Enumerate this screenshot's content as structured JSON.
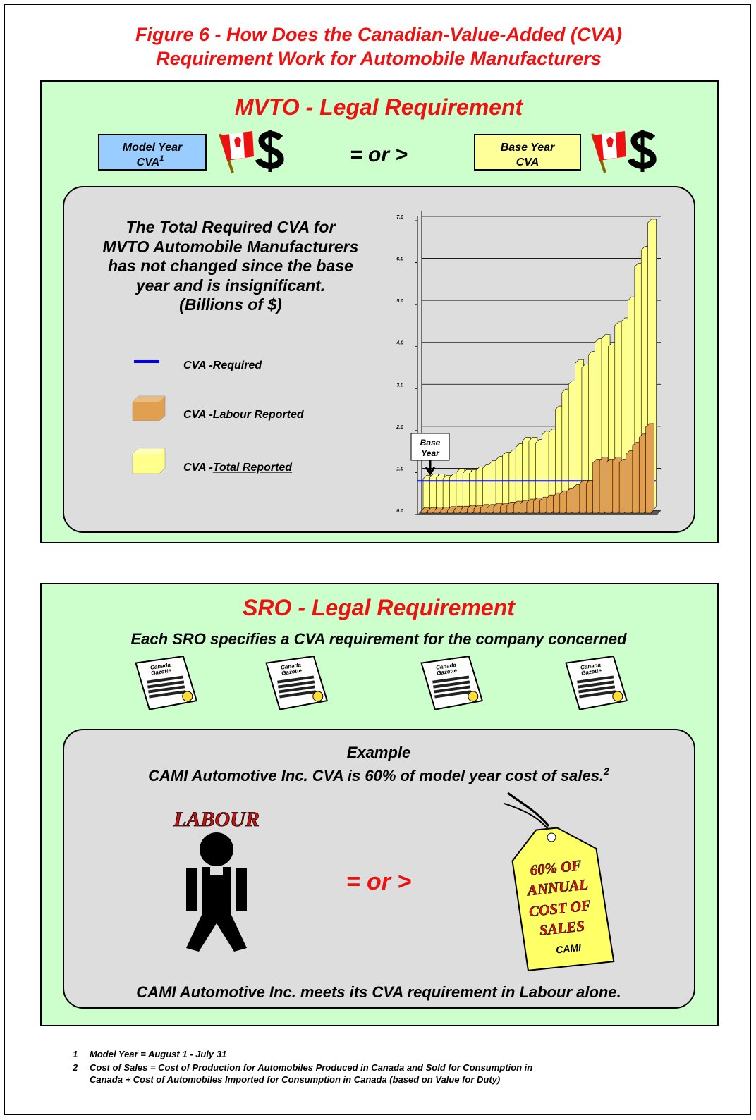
{
  "title": [
    "Figure 6 - How Does the Canadian-Value-Added (CVA)",
    "Requirement Work for Automobile Manufacturers"
  ],
  "mvto": {
    "heading": "MVTO - Legal Requirement",
    "left_box": {
      "lines": [
        "Model Year",
        "CVA"
      ],
      "sup": "1"
    },
    "comparison": "= or >",
    "right_box": {
      "lines": [
        "Base Year",
        "CVA"
      ]
    },
    "statement": [
      "The Total Required CVA for",
      "MVTO Automobile Manufacturers",
      "has not changed since the base",
      "year and is insignificant.",
      "(Billions of $)"
    ],
    "chart": {
      "type": "bar",
      "annotation": [
        "Base",
        "Year"
      ],
      "ylim": [
        0,
        7
      ],
      "yticks": [
        {
          "value": 0,
          "label": "0.0"
        },
        {
          "value": 1,
          "label": "1.0"
        },
        {
          "value": 2,
          "label": "2.0"
        },
        {
          "value": 3,
          "label": "3.0"
        },
        {
          "value": 4,
          "label": "4.0"
        },
        {
          "value": 5,
          "label": "5.0"
        },
        {
          "value": 6,
          "label": "6.0"
        },
        {
          "value": 7,
          "label": "7.0"
        }
      ],
      "grid": true,
      "required": {
        "name": "CVA -Required",
        "color": "#0000ff",
        "value": 0.7
      },
      "series": [
        {
          "name_prefix": "CVA -",
          "name_underlined": "Total Reported",
          "color": "#ffff8c",
          "values": [
            0.75,
            0.78,
            0.78,
            0.75,
            0.78,
            0.9,
            0.88,
            0.88,
            0.95,
            1.0,
            1.1,
            1.2,
            1.3,
            1.35,
            1.5,
            1.65,
            1.65,
            1.6,
            1.8,
            1.85,
            2.4,
            2.8,
            3.0,
            3.5,
            3.4,
            3.7,
            4.0,
            4.1,
            3.9,
            4.4,
            4.5,
            5.0,
            5.8,
            6.2,
            6.85
          ]
        },
        {
          "name": "CVA -Labour Reported",
          "color": "#e0a050",
          "values": [
            0.05,
            0.05,
            0.06,
            0.06,
            0.07,
            0.08,
            0.08,
            0.1,
            0.1,
            0.12,
            0.12,
            0.15,
            0.15,
            0.18,
            0.2,
            0.22,
            0.25,
            0.28,
            0.3,
            0.35,
            0.4,
            0.45,
            0.5,
            0.6,
            0.7,
            0.7,
            1.2,
            1.25,
            1.2,
            1.25,
            1.2,
            1.4,
            1.6,
            1.8,
            2.05
          ]
        }
      ]
    }
  },
  "sro": {
    "heading": "SRO - Legal Requirement",
    "subheading": "Each SRO specifies a CVA requirement for the company concerned",
    "gazettes": [
      [
        "Canada",
        "Gazette"
      ],
      [
        "Canada",
        "Gazette"
      ],
      [
        "Canada",
        "Gazette"
      ],
      [
        "Canada",
        "Gazette"
      ]
    ],
    "example_title": "Example",
    "example_text": "CAMI Automotive Inc. CVA is 60% of model year cost of sales.",
    "example_sup": "2",
    "labour_label": "LABOUR",
    "comparison": "= or >",
    "tag": [
      "60% OF",
      "ANNUAL",
      "COST OF",
      "SALES",
      "CAMI"
    ],
    "conclusion": "CAMI Automotive Inc. meets its CVA requirement in Labour alone."
  },
  "footnotes": [
    {
      "number": "1",
      "lines": [
        "Model Year = August 1 - July 31"
      ]
    },
    {
      "number": "2",
      "lines": [
        "Cost of Sales = Cost of Production for Automobiles Produced in Canada and Sold for Consumption in",
        "Canada + Cost of Automobiles Imported for Consumption in Canada (based on Value for Duty)"
      ]
    }
  ]
}
